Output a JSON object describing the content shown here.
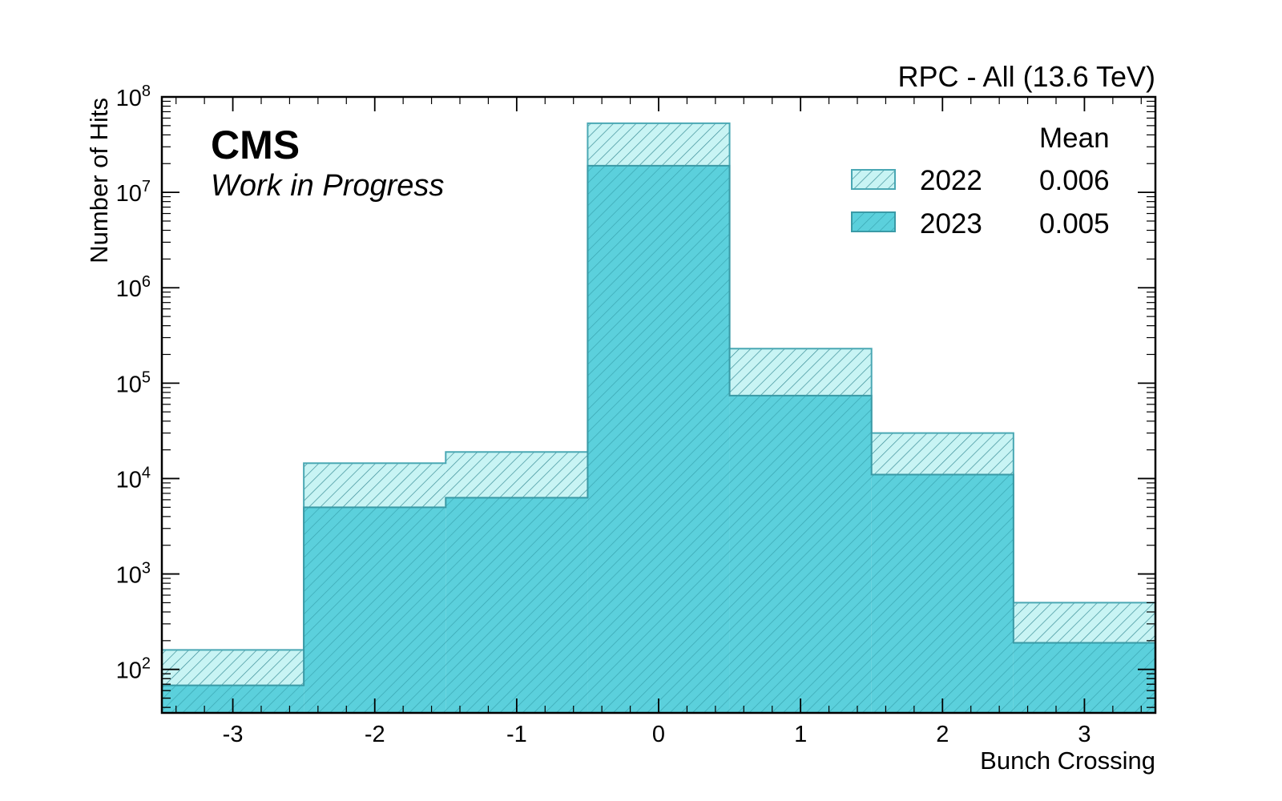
{
  "chart_data": {
    "type": "bar",
    "title": "RPC - All (13.6 TeV)",
    "experiment_label": "CMS",
    "status_label": "Work in Progress",
    "xlabel": "Bunch Crossing",
    "ylabel": "Number of Hits",
    "x_ticks": [
      "-3",
      "-2",
      "-1",
      "0",
      "1",
      "2",
      "3"
    ],
    "y_ticks": [
      {
        "base": "10",
        "exp": "2",
        "value": 100
      },
      {
        "base": "10",
        "exp": "3",
        "value": 1000
      },
      {
        "base": "10",
        "exp": "4",
        "value": 10000
      },
      {
        "base": "10",
        "exp": "5",
        "value": 100000
      },
      {
        "base": "10",
        "exp": "6",
        "value": 1000000
      },
      {
        "base": "10",
        "exp": "7",
        "value": 10000000
      },
      {
        "base": "10",
        "exp": "8",
        "value": 100000000
      }
    ],
    "x_scale": "linear",
    "y_scale": "log",
    "xlim": [
      -3.5,
      3.5
    ],
    "ylim": [
      35,
      100000000
    ],
    "bin_edges": [
      -3.5,
      -2.5,
      -1.5,
      -0.5,
      0.5,
      1.5,
      2.5,
      3.5
    ],
    "categories": [
      "-3",
      "-2",
      "-1",
      "0",
      "1",
      "2",
      "3"
    ],
    "legend_header": "Mean",
    "legend_position": "top-right",
    "grid": false,
    "series": [
      {
        "name": "2022",
        "mean": "0.006",
        "values": [
          160,
          14500,
          19000,
          53000000,
          230000,
          30000,
          500
        ],
        "fill": "#c8f4f4",
        "edge": "#4aa8b4",
        "style": "hatched"
      },
      {
        "name": "2023",
        "mean": "0.005",
        "values": [
          68,
          5000,
          6300,
          19000000,
          74000,
          11000,
          190
        ],
        "fill": "#5bd0dc",
        "edge": "#3a9aa6",
        "style": "solid-hatched"
      }
    ]
  }
}
